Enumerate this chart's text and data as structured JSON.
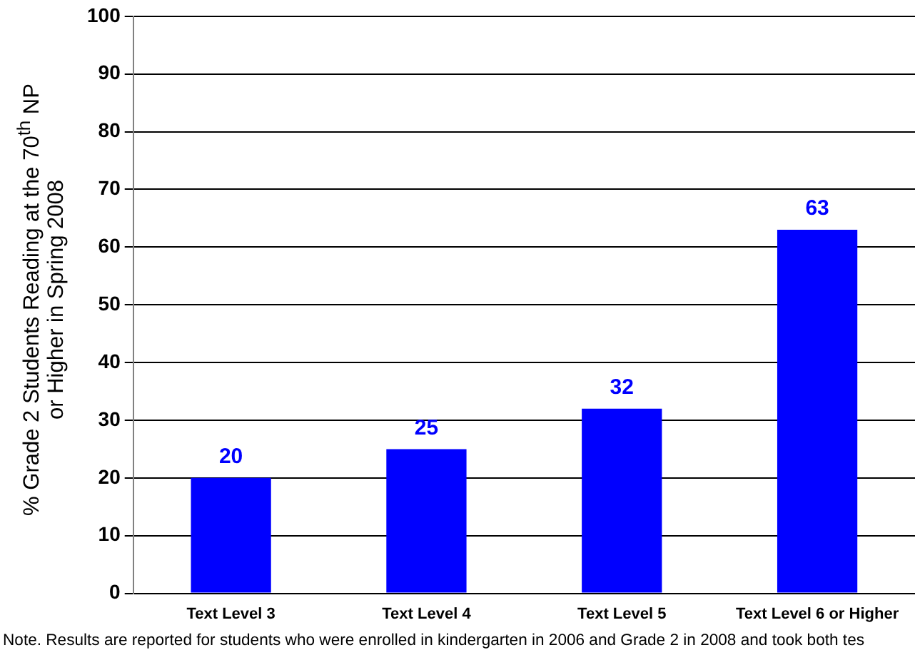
{
  "chart_data": {
    "type": "bar",
    "ylabel": "% Grade 2 Students Reading at the 70$^{th}$ NP\nor Higher in Spring 2008",
    "categories": [
      "Text Level 3",
      "Text Level 4",
      "Text Level 5",
      "Text Level 6 or Higher"
    ],
    "values": [
      20,
      25,
      32,
      63
    ],
    "color": "#0000ff",
    "ylim": [
      0,
      100
    ],
    "yticks": [
      0,
      10,
      20,
      30,
      40,
      50,
      60,
      70,
      80,
      90,
      100
    ],
    "grid": "y",
    "legend": false,
    "data_labels": true,
    "annotations": [
      "Note.  Results are reported for students who were enrolled in kindergarten in 2006 and Grade 2 in 2008 and took both tes"
    ]
  }
}
